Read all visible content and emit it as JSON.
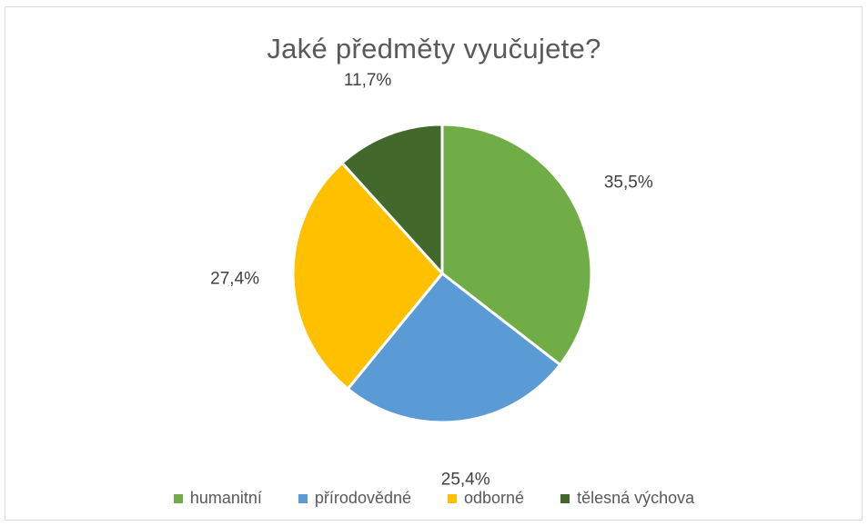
{
  "chart_data": {
    "type": "pie",
    "title": "Jaké předměty vyučujete?",
    "start_angle_deg": 0,
    "direction": "clockwise",
    "legend_position": "bottom",
    "slices": [
      {
        "name": "humanitní",
        "value": 35.5,
        "label": "35,5%",
        "color": "#70ad47"
      },
      {
        "name": "přírodovědné",
        "value": 25.4,
        "label": "25,4%",
        "color": "#5b9bd5"
      },
      {
        "name": "odborné",
        "value": 27.4,
        "label": "27,4%",
        "color": "#ffc000"
      },
      {
        "name": "tělesná výchova",
        "value": 11.7,
        "label": "11,7%",
        "color": "#43682b"
      }
    ]
  },
  "legend": {
    "items": [
      {
        "label": "humanitní",
        "color": "#70ad47"
      },
      {
        "label": "přírodovědné",
        "color": "#5b9bd5"
      },
      {
        "label": "odborné",
        "color": "#ffc000"
      },
      {
        "label": "tělesná výchova",
        "color": "#43682b"
      }
    ]
  }
}
